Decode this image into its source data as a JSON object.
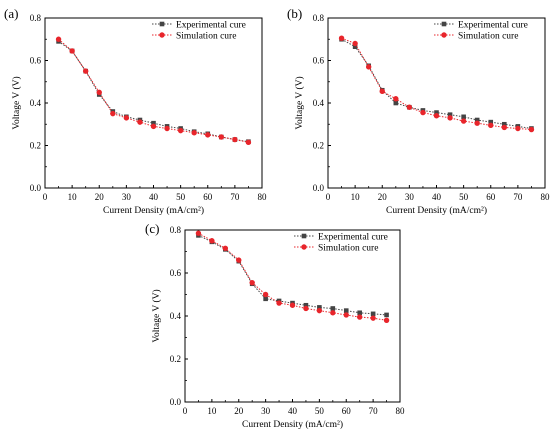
{
  "chart_data": [
    {
      "panel": "(a)",
      "type": "line",
      "xlabel": "Current Density (mA/cm²)",
      "ylabel": "Voltage V (V)",
      "xlim": [
        0,
        80
      ],
      "ylim": [
        0.0,
        0.8
      ],
      "x_ticks": [
        "0",
        "10",
        "20",
        "30",
        "40",
        "50",
        "60",
        "70",
        "80"
      ],
      "y_ticks": [
        "0.0",
        "0.2",
        "0.4",
        "0.6",
        "0.8"
      ],
      "grid": false,
      "legend": "top-right",
      "series": [
        {
          "name": "Experimental cure",
          "color": "#444444",
          "marker": "square",
          "x": [
            5,
            10,
            15,
            20,
            25,
            30,
            35,
            40,
            45,
            50,
            55,
            60,
            65,
            70,
            75
          ],
          "y": [
            0.69,
            0.645,
            0.55,
            0.44,
            0.36,
            0.335,
            0.32,
            0.305,
            0.29,
            0.28,
            0.265,
            0.255,
            0.24,
            0.228,
            0.218
          ]
        },
        {
          "name": "Simulation cure",
          "color": "#e8252b",
          "marker": "circle",
          "x": [
            5,
            10,
            15,
            20,
            25,
            30,
            35,
            40,
            45,
            50,
            55,
            60,
            65,
            70,
            75
          ],
          "y": [
            0.7,
            0.645,
            0.55,
            0.45,
            0.35,
            0.33,
            0.31,
            0.29,
            0.28,
            0.27,
            0.26,
            0.25,
            0.24,
            0.228,
            0.215
          ]
        }
      ]
    },
    {
      "panel": "(b)",
      "type": "line",
      "xlabel": "Current Density (mA/cm²)",
      "ylabel": "Voltage V (V)",
      "xlim": [
        0,
        80
      ],
      "ylim": [
        0.0,
        0.8
      ],
      "x_ticks": [
        "0",
        "10",
        "20",
        "30",
        "40",
        "50",
        "60",
        "70",
        "80"
      ],
      "y_ticks": [
        "0.0",
        "0.2",
        "0.4",
        "0.6",
        "0.8"
      ],
      "grid": false,
      "legend": "top-right",
      "series": [
        {
          "name": "Experimental cure",
          "color": "#444444",
          "marker": "square",
          "x": [
            5,
            10,
            15,
            20,
            25,
            30,
            35,
            40,
            45,
            50,
            55,
            60,
            65,
            70,
            75
          ],
          "y": [
            0.7,
            0.665,
            0.575,
            0.46,
            0.4,
            0.38,
            0.365,
            0.355,
            0.345,
            0.335,
            0.32,
            0.31,
            0.3,
            0.29,
            0.28
          ]
        },
        {
          "name": "Simulation cure",
          "color": "#e8252b",
          "marker": "circle",
          "x": [
            5,
            10,
            15,
            20,
            25,
            30,
            35,
            40,
            45,
            50,
            55,
            60,
            65,
            70,
            75
          ],
          "y": [
            0.705,
            0.68,
            0.57,
            0.455,
            0.42,
            0.38,
            0.355,
            0.34,
            0.33,
            0.315,
            0.305,
            0.295,
            0.285,
            0.28,
            0.275
          ]
        }
      ]
    },
    {
      "panel": "(c)",
      "type": "line",
      "xlabel": "Current Density (mA/cm²)",
      "ylabel": "Voltage V (V)",
      "xlim": [
        0,
        80
      ],
      "ylim": [
        0.0,
        0.8
      ],
      "x_ticks": [
        "0",
        "10",
        "20",
        "30",
        "40",
        "50",
        "60",
        "70",
        "80"
      ],
      "y_ticks": [
        "0.0",
        "0.2",
        "0.4",
        "0.6",
        "0.8"
      ],
      "grid": false,
      "legend": "top-right",
      "series": [
        {
          "name": "Experimental cure",
          "color": "#444444",
          "marker": "square",
          "x": [
            5,
            10,
            15,
            20,
            25,
            30,
            35,
            40,
            45,
            50,
            55,
            60,
            65,
            70,
            75
          ],
          "y": [
            0.775,
            0.745,
            0.71,
            0.655,
            0.55,
            0.48,
            0.47,
            0.46,
            0.45,
            0.44,
            0.435,
            0.425,
            0.415,
            0.41,
            0.405
          ]
        },
        {
          "name": "Simulation cure",
          "color": "#e8252b",
          "marker": "circle",
          "x": [
            5,
            10,
            15,
            20,
            25,
            30,
            35,
            40,
            45,
            50,
            55,
            60,
            65,
            70,
            75
          ],
          "y": [
            0.785,
            0.75,
            0.715,
            0.66,
            0.555,
            0.5,
            0.46,
            0.45,
            0.435,
            0.425,
            0.415,
            0.405,
            0.395,
            0.39,
            0.38
          ]
        }
      ]
    }
  ]
}
